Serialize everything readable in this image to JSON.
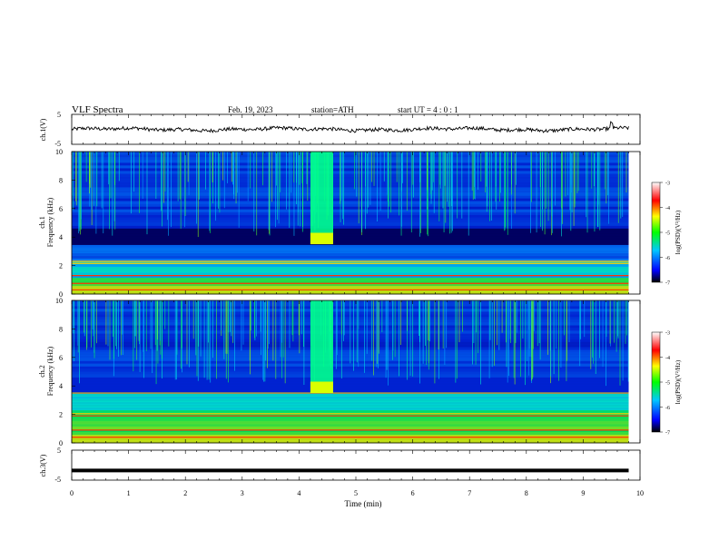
{
  "header": {
    "title": "VLF  Spectra",
    "date": "Feb. 19, 2023",
    "station": "station=ATH",
    "start": "start  UT  =   4  : 0   : 1"
  },
  "colors": {
    "background": "#00008b",
    "colormap": [
      "#000000",
      "#0000ff",
      "#00c8ff",
      "#00ff00",
      "#ffff00",
      "#ff0000",
      "#ffffff"
    ]
  },
  "chart_data": [
    {
      "type": "line",
      "name": "ch1",
      "ylabel": "ch.1(V)",
      "ylim": [
        -5,
        5
      ],
      "yticks": [
        "5",
        "-5"
      ],
      "xlim": [
        0,
        10
      ],
      "mean": 0,
      "amplitude": 0.6
    },
    {
      "type": "heatmap",
      "name": "ch1-spectrogram",
      "ylabel": "ch.1\nFrequency (kHz)",
      "ylabel_lines": [
        "ch.1",
        "Frequency (kHz)"
      ],
      "ylim": [
        0,
        10
      ],
      "yticks": [
        "0",
        "2",
        "4",
        "6",
        "8",
        "10"
      ],
      "xlim": [
        0,
        10
      ],
      "burst": {
        "t_start": 4.2,
        "t_end": 4.6,
        "f_low": 3.5,
        "f_high": 10
      },
      "colorbar": {
        "label": "log(PSD)(V²/Hz)",
        "ticks": [
          "-3",
          "-4",
          "-5",
          "-6",
          "-7"
        ],
        "range": [
          -7,
          -3
        ]
      }
    },
    {
      "type": "heatmap",
      "name": "ch2-spectrogram",
      "ylabel": "ch.2\nFrequency (kHz)",
      "ylabel_lines": [
        "ch.2",
        "Frequency (kHz)"
      ],
      "ylim": [
        0,
        10
      ],
      "yticks": [
        "0",
        "2",
        "4",
        "6",
        "8",
        "10"
      ],
      "xlim": [
        0,
        10
      ],
      "burst": {
        "t_start": 4.2,
        "t_end": 4.6,
        "f_low": 3.5,
        "f_high": 10
      },
      "colorbar": {
        "label": "log(PSD)(V²/Hz)",
        "ticks": [
          "-3",
          "-4",
          "-5",
          "-6",
          "-7"
        ],
        "range": [
          -7,
          -3
        ]
      }
    },
    {
      "type": "line",
      "name": "ch3",
      "ylabel": "ch.3(V)",
      "ylim": [
        -5,
        5
      ],
      "yticks": [
        "5",
        "-5"
      ],
      "xlim": [
        0,
        10
      ],
      "mean": -1.8,
      "amplitude": 0.1,
      "xlabel": "Time (min)",
      "xticks": [
        "0",
        "1",
        "2",
        "3",
        "4",
        "5",
        "6",
        "7",
        "8",
        "9",
        "10"
      ]
    }
  ]
}
